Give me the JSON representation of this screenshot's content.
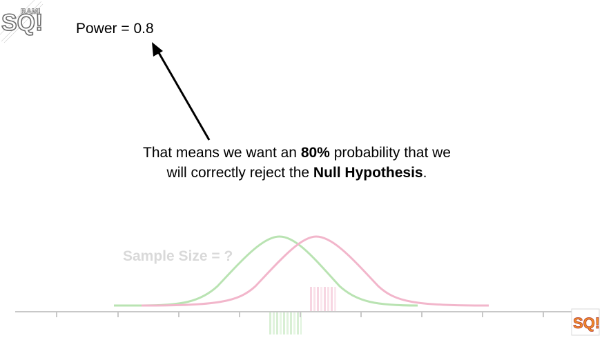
{
  "annotation": {
    "power_text": "Power = 0.8",
    "caption": {
      "part1": "That means we want an ",
      "bold1": "80%",
      "part2": " probability that we will correctly reject the ",
      "bold2": "Null Hypothesis",
      "part3": "."
    },
    "sample_size_text": "Sample Size = ?"
  },
  "logos": {
    "top_left_text": "SQ!",
    "top_left_tagline": "BAM!",
    "bottom_right_text": "SQ!"
  },
  "colors": {
    "text": "#000000",
    "faded_text": "#d9d9d9",
    "green_curve": "#b9e3b2",
    "pink_curve": "#f2b6cb",
    "axis": "#c8c8c8",
    "arrow": "#000000"
  }
}
